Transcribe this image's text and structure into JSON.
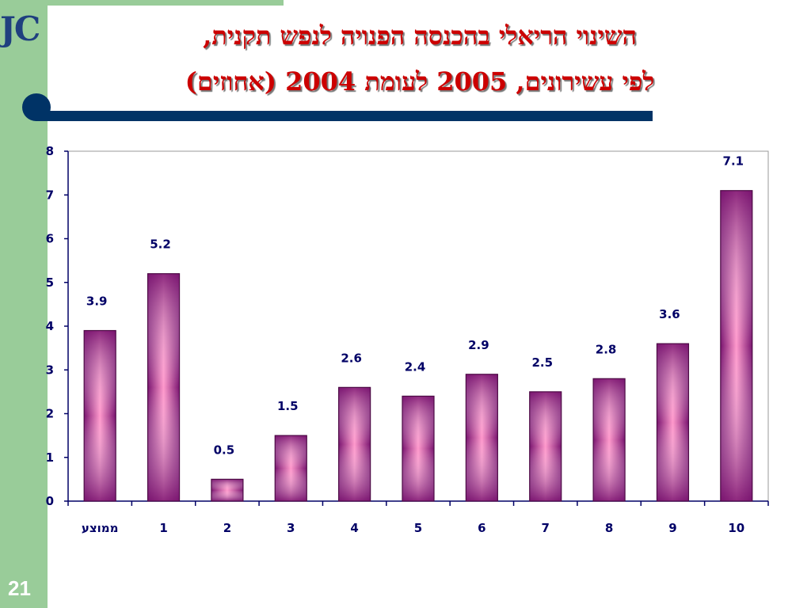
{
  "slide": {
    "logo_text": "JC",
    "title_line1": "השינוי הריאלי בהכנסה הפנויה לנפש תקנית,",
    "title_line2": "לפי עשירונים, 2005 לעומת 2004 (אחוזים)",
    "slide_number": "21"
  },
  "colors": {
    "side_band": "#99cc99",
    "divider": "#003366",
    "title": "#cc0000",
    "bar_dark": "#7a1470",
    "bar_light": "#ff99cc",
    "labels": "#000066"
  },
  "chart_data": {
    "type": "bar",
    "categories": [
      "ממוצע",
      "1",
      "2",
      "3",
      "4",
      "5",
      "6",
      "7",
      "8",
      "9",
      "10"
    ],
    "values": [
      3.9,
      5.2,
      0.5,
      1.5,
      2.6,
      2.4,
      2.9,
      2.5,
      2.8,
      3.6,
      7.1
    ],
    "data_labels": [
      "3.9",
      "5.2",
      "0.5",
      "1.5",
      "2.6",
      "2.4",
      "2.9",
      "2.5",
      "2.8",
      "3.6",
      "7.1"
    ],
    "ylim": [
      0,
      8
    ],
    "yticks": [
      "0",
      "1",
      "2",
      "3",
      "4",
      "5",
      "6",
      "7",
      "8"
    ],
    "grid": false,
    "legend": "none"
  }
}
